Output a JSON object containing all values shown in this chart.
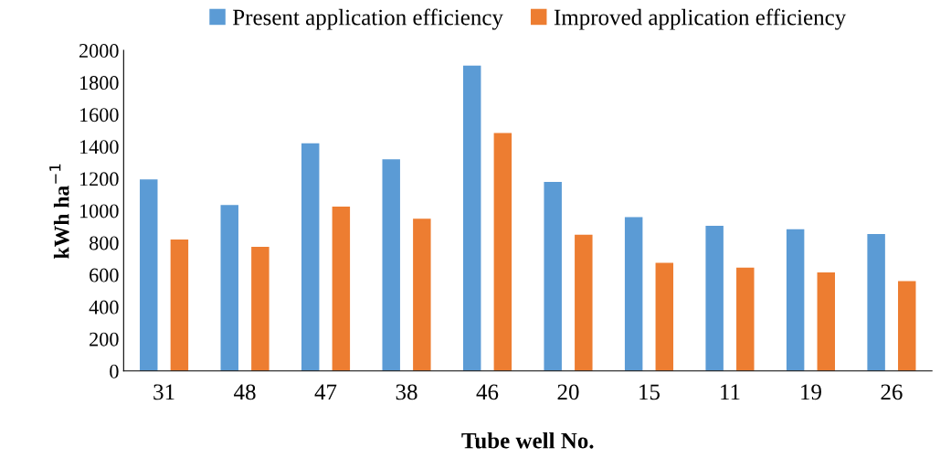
{
  "chart_data": {
    "type": "bar",
    "xlabel": "Tube well No.",
    "ylabel": "kWh ha$^{−1}$",
    "categories": [
      "31",
      "48",
      "47",
      "38",
      "46",
      "20",
      "15",
      "11",
      "19",
      "26"
    ],
    "series": [
      {
        "name": "Present application efficiency",
        "color": "#5b9bd5",
        "values": [
          1195,
          1035,
          1420,
          1320,
          1905,
          1180,
          960,
          905,
          885,
          855
        ]
      },
      {
        "name": "Improved application efficiency",
        "color": "#ed7d31",
        "values": [
          820,
          775,
          1025,
          950,
          1485,
          850,
          675,
          645,
          615,
          560
        ]
      }
    ],
    "ylim": [
      0,
      2000
    ],
    "yticks": [
      0,
      200,
      400,
      600,
      800,
      1000,
      1200,
      1400,
      1600,
      1800,
      2000
    ],
    "grid": false,
    "legend": "top"
  }
}
